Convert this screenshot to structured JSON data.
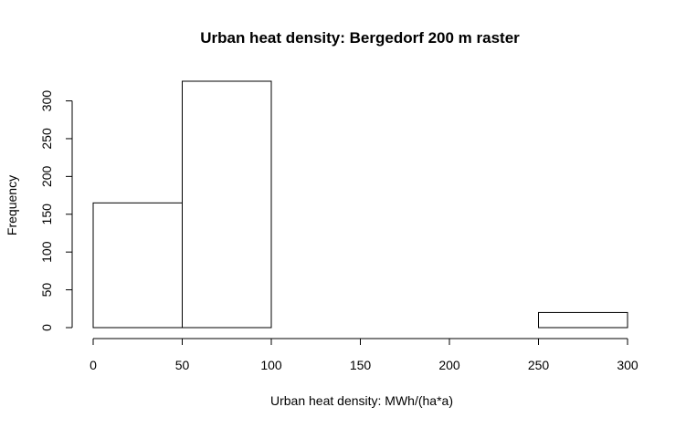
{
  "chart_data": {
    "type": "histogram",
    "title": "Urban heat density: Bergedorf 200 m raster",
    "xlabel": "Urban heat density: MWh/(ha*a)",
    "ylabel": "Frequency",
    "bins": [
      {
        "start": 0,
        "end": 50,
        "count": 165
      },
      {
        "start": 50,
        "end": 100,
        "count": 326
      },
      {
        "start": 100,
        "end": 150,
        "count": 0
      },
      {
        "start": 150,
        "end": 200,
        "count": 0
      },
      {
        "start": 200,
        "end": 250,
        "count": 0
      },
      {
        "start": 250,
        "end": 300,
        "count": 20
      }
    ],
    "xlim": [
      0,
      300
    ],
    "ylim": [
      0,
      326
    ],
    "xticks": [
      0,
      50,
      100,
      150,
      200,
      250,
      300
    ],
    "yticks": [
      0,
      50,
      100,
      150,
      200,
      250,
      300
    ],
    "grid": false,
    "legend": "none"
  }
}
